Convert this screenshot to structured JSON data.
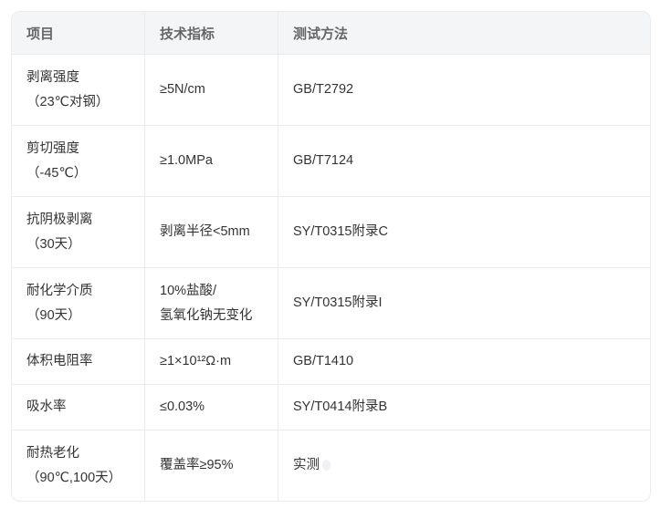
{
  "table": {
    "headers": [
      "项目",
      "技术指标",
      "测试方法"
    ],
    "rows": [
      {
        "item": [
          "剥离强度",
          "（23℃对钢）"
        ],
        "spec": [
          "≥5N/cm"
        ],
        "method": "GB/T2792"
      },
      {
        "item": [
          "剪切强度",
          "（-45℃）"
        ],
        "spec": [
          "≥1.0MPa"
        ],
        "method": "GB/T7124"
      },
      {
        "item": [
          "抗阴极剥离",
          "（30天）"
        ],
        "spec": [
          "剥离半径<5mm"
        ],
        "method": "SY/T0315附录C"
      },
      {
        "item": [
          "耐化学介质",
          "（90天）"
        ],
        "spec": [
          "10%盐酸/",
          "氢氧化钠无变化"
        ],
        "method": "SY/T0315附录I"
      },
      {
        "item": [
          "体积电阻率"
        ],
        "spec": [
          "≥1×10¹²Ω·m"
        ],
        "method": "GB/T1410"
      },
      {
        "item": [
          "吸水率"
        ],
        "spec": [
          "≤0.03%"
        ],
        "method": "SY/T0414附录B"
      },
      {
        "item": [
          "耐热老化",
          "（90℃,100天）"
        ],
        "spec": [
          "覆盖率≥95%"
        ],
        "method": "实测"
      }
    ]
  }
}
